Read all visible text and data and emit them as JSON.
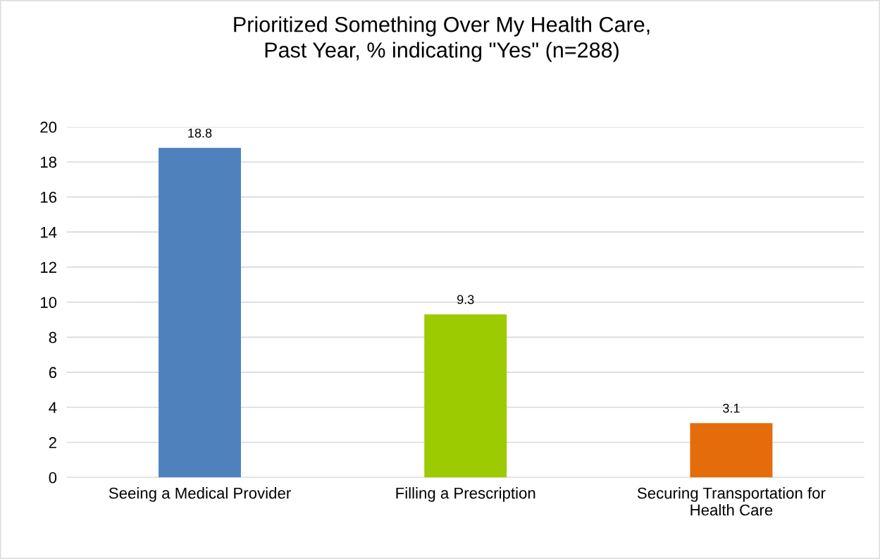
{
  "chart_data": {
    "type": "bar",
    "title": "Prioritized Something Over My Health Care,\nPast Year, % indicating \"Yes\" (n=288)",
    "categories": [
      "Seeing a Medical Provider",
      "Filling a Prescription",
      "Securing Transportation for\nHealth Care"
    ],
    "values": [
      18.8,
      9.3,
      3.1
    ],
    "colors": [
      "#4f81bd",
      "#9bcb00",
      "#e46c0a"
    ],
    "ylim": [
      0,
      20
    ],
    "yticks": [
      0,
      2,
      4,
      6,
      8,
      10,
      12,
      14,
      16,
      18,
      20
    ],
    "grid": "y",
    "data_labels": true
  }
}
